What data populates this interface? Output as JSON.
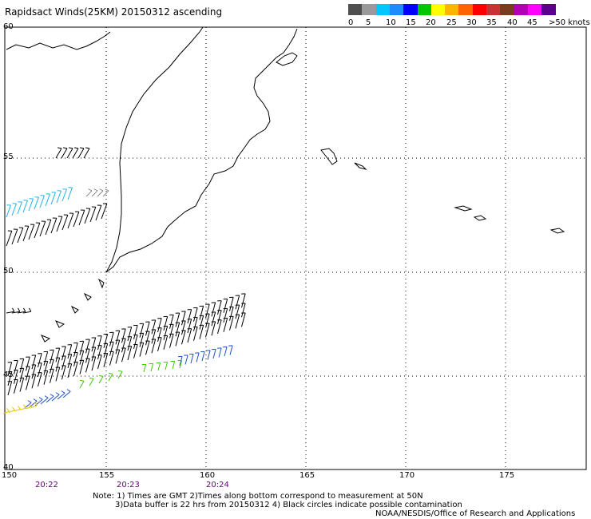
{
  "title": "Rapidsact Winds(25KM) 20150312 ascending",
  "legend": {
    "colors": [
      "#4f4f4f",
      "#9a9a9a",
      "#00c8ff",
      "#1e8cff",
      "#0000ff",
      "#00c800",
      "#ffff00",
      "#ffb400",
      "#ff6400",
      "#ff0000",
      "#c83232",
      "#783c1e",
      "#b400b4",
      "#ff00ff",
      "#5a008c"
    ],
    "labels": [
      "0",
      "5",
      "10",
      "15",
      "20",
      "25",
      "30",
      "35",
      "40",
      "45",
      ">50 knots"
    ]
  },
  "lat_labels": [
    "60",
    "55",
    "50",
    "45",
    "40"
  ],
  "lon_labels": [
    "150",
    "155",
    "160",
    "165",
    "170",
    "175"
  ],
  "times": [
    "20:22",
    "20:23",
    "20:24"
  ],
  "notes": {
    "line1": "Note: 1) Times are GMT 2)Times along bottom correspond to measurement at 50N",
    "line2": "3)Data buffer is 22 hrs from 20150312 4) Black circles indicate possible contamination"
  },
  "credit": "NOAA/NESDIS/Office of Research and Applications"
}
